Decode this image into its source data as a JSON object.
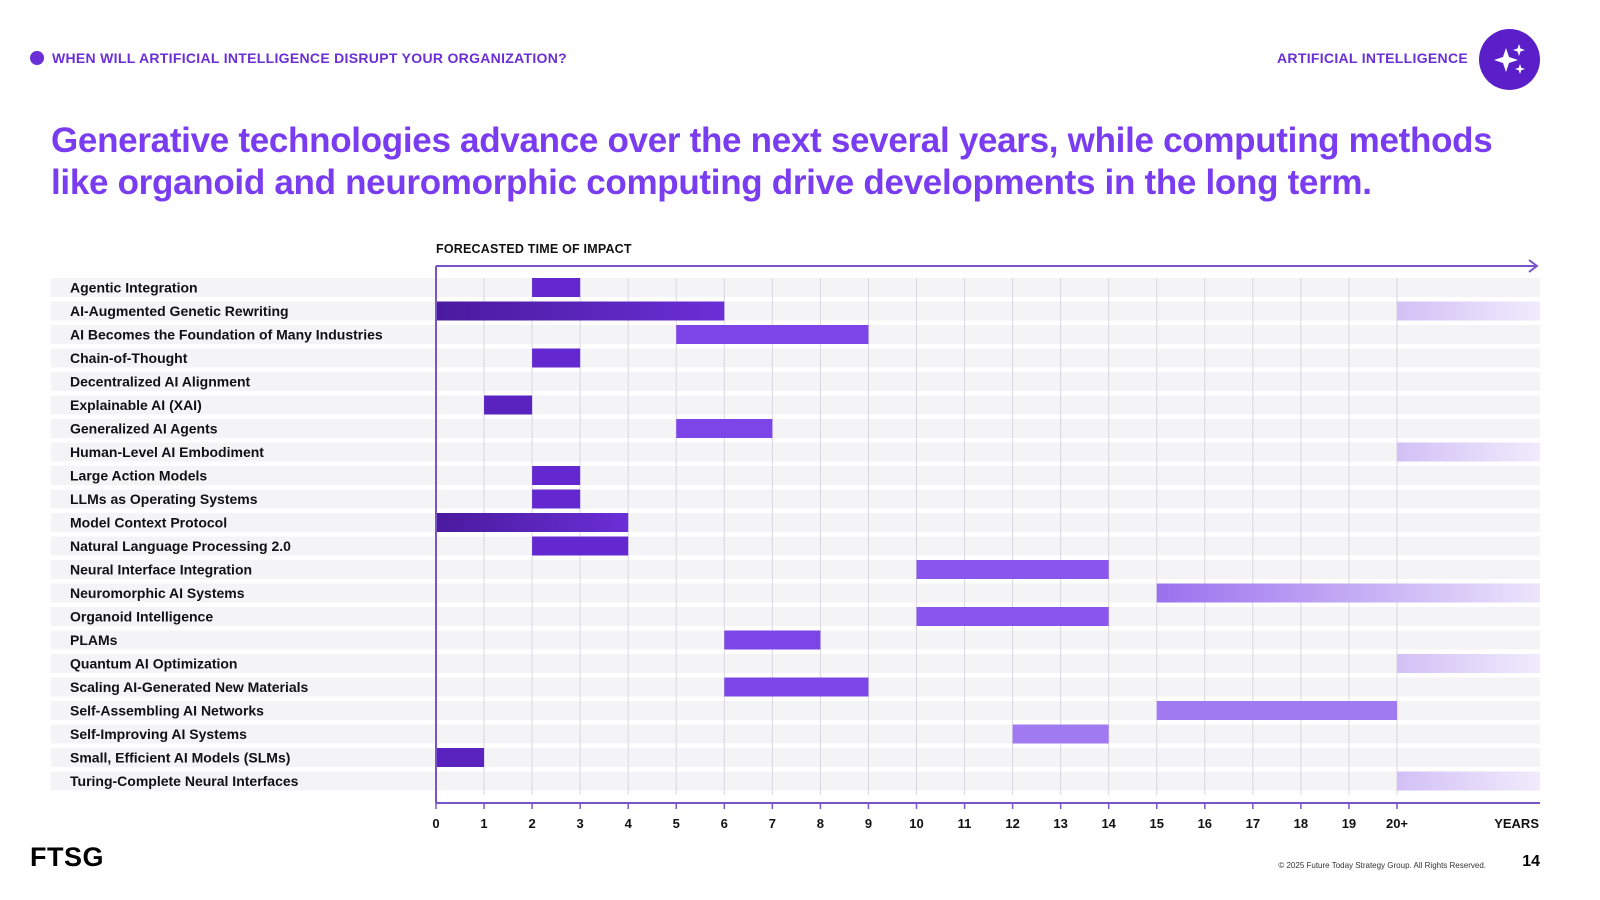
{
  "header": {
    "section_label": "WHEN WILL ARTIFICIAL INTELLIGENCE DISRUPT YOUR ORGANIZATION?",
    "category_label": "ARTIFICIAL INTELLIGENCE",
    "badge_icon": "sparkles-icon"
  },
  "headline": "Generative technologies advance over the next several years, while computing methods like organoid and neuromorphic computing drive developments in the long term.",
  "footer": {
    "logo": "FTSG",
    "copyright": "© 2025 Future Today Strategy Group. All Rights Reserved.",
    "page_number": "14"
  },
  "colors": {
    "accent": "#6a2fd6",
    "headline": "#7a3cf0",
    "bar_near": "#5a23c0",
    "bar_mid": "#7d44e8",
    "bar_far": "#a07af0",
    "row_band": "#f4f4f6",
    "grid": "#d9d6e2",
    "axis": "#7a55c8"
  },
  "chart_data": {
    "type": "bar",
    "orientation": "horizontal-timeline",
    "axis_title": "FORECASTED TIME OF IMPACT",
    "xlabel": "YEARS",
    "x_ticks": [
      "0",
      "1",
      "2",
      "3",
      "4",
      "5",
      "6",
      "7",
      "8",
      "9",
      "10",
      "11",
      "12",
      "13",
      "14",
      "15",
      "16",
      "17",
      "18",
      "19",
      "20+"
    ],
    "xlim": [
      0,
      23
    ],
    "rows": [
      {
        "label": "Agentic Integration",
        "start": 2,
        "end": 3
      },
      {
        "label": "AI-Augmented Genetic Rewriting",
        "start": 0,
        "end": 6,
        "tail_start": 20
      },
      {
        "label": "AI Becomes the Foundation of Many Industries",
        "start": 5,
        "end": 9
      },
      {
        "label": "Chain-of-Thought",
        "start": 2,
        "end": 3
      },
      {
        "label": "Decentralized AI Alignment",
        "start": null,
        "end": null
      },
      {
        "label": "Explainable AI (XAI)",
        "start": 1,
        "end": 2
      },
      {
        "label": "Generalized AI Agents",
        "start": 5,
        "end": 7
      },
      {
        "label": "Human-Level AI Embodiment",
        "start": null,
        "end": null,
        "tail_start": 20
      },
      {
        "label": "Large Action Models",
        "start": 2,
        "end": 3
      },
      {
        "label": "LLMs as Operating Systems",
        "start": 2,
        "end": 3
      },
      {
        "label": "Model Context Protocol",
        "start": 0,
        "end": 4
      },
      {
        "label": "Natural Language Processing 2.0",
        "start": 2,
        "end": 4
      },
      {
        "label": "Neural Interface Integration",
        "start": 10,
        "end": 14
      },
      {
        "label": "Neuromorphic AI Systems",
        "start": 15,
        "end": 23
      },
      {
        "label": "Organoid Intelligence",
        "start": 10,
        "end": 14
      },
      {
        "label": "PLAMs",
        "start": 6,
        "end": 8
      },
      {
        "label": "Quantum AI Optimization",
        "start": null,
        "end": null,
        "tail_start": 20
      },
      {
        "label": "Scaling AI-Generated New Materials",
        "start": 6,
        "end": 9
      },
      {
        "label": "Self-Assembling AI Networks",
        "start": 15,
        "end": 20
      },
      {
        "label": "Self-Improving AI Systems",
        "start": 12,
        "end": 14
      },
      {
        "label": "Small, Efficient AI Models (SLMs)",
        "start": 0,
        "end": 1
      },
      {
        "label": "Turing-Complete Neural Interfaces",
        "start": null,
        "end": null,
        "tail_start": 20
      }
    ],
    "legend": "none",
    "grid": true
  }
}
